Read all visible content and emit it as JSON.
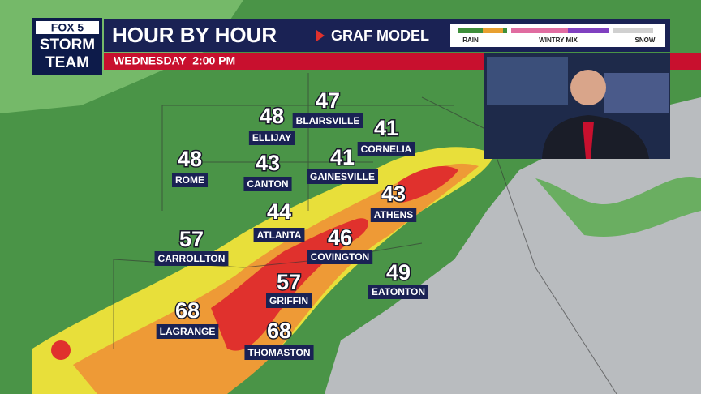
{
  "logo": {
    "brand": "FOX 5",
    "line1": "STORM",
    "line2": "TEAM"
  },
  "header": {
    "title": "HOUR BY HOUR",
    "model": "GRAF MODEL",
    "subtitle": "WEDNESDAY  2:00 PM"
  },
  "legend": {
    "labels": [
      "RAIN",
      "WINTRY MIX",
      "SNOW"
    ]
  },
  "cities": [
    {
      "name": "BLAIRSVILLE",
      "temp": 47
    },
    {
      "name": "ELLIJAY",
      "temp": 48
    },
    {
      "name": "CORNELIA",
      "temp": 41
    },
    {
      "name": "ROME",
      "temp": 48
    },
    {
      "name": "CANTON",
      "temp": 43
    },
    {
      "name": "GAINESVILLE",
      "temp": 41
    },
    {
      "name": "ATHENS",
      "temp": 43
    },
    {
      "name": "ATLANTA",
      "temp": 44
    },
    {
      "name": "COVINGTON",
      "temp": 46
    },
    {
      "name": "CARROLLTON",
      "temp": 57
    },
    {
      "name": "EATONTON",
      "temp": 49
    },
    {
      "name": "GRIFFIN",
      "temp": 57
    },
    {
      "name": "LAGRANGE",
      "temp": 68
    },
    {
      "name": "THOMASTON",
      "temp": 68
    }
  ]
}
